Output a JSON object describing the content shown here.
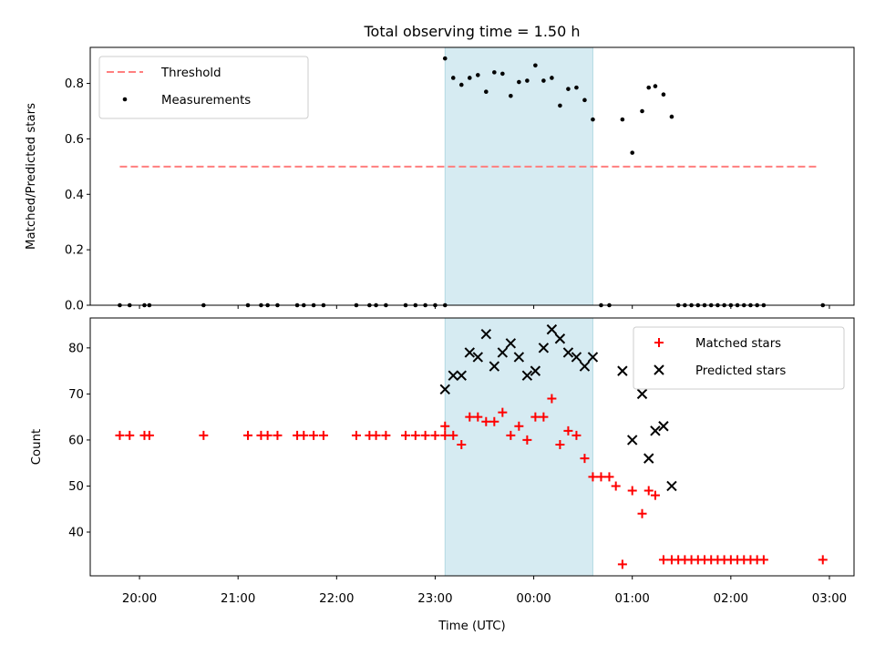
{
  "chart_data": [
    {
      "type": "scatter",
      "title": "Total observing time = 1.50 h",
      "xlabel": "",
      "ylabel": "Matched/Predicted stars",
      "ylim": [
        0,
        0.93
      ],
      "yticks": [
        "0.0",
        "0.2",
        "0.4",
        "0.6",
        "0.8"
      ],
      "shaded_span": {
        "start": "23:06",
        "end": "00:36",
        "color": "#add8e6"
      },
      "legend_position": "top-left",
      "series": [
        {
          "name": "Threshold",
          "kind": "dashed-line",
          "color": "#ff7f7f",
          "points": [
            [
              "19:48",
              0.5
            ],
            [
              "02:54",
              0.5
            ]
          ]
        },
        {
          "name": "Measurements",
          "kind": "dots",
          "color": "#000000",
          "points": [
            [
              "19:48",
              0.0
            ],
            [
              "19:54",
              0.0
            ],
            [
              "20:03",
              0.0
            ],
            [
              "20:06",
              0.0
            ],
            [
              "20:39",
              0.0
            ],
            [
              "21:06",
              0.0
            ],
            [
              "21:14",
              0.0
            ],
            [
              "21:18",
              0.0
            ],
            [
              "21:24",
              0.0
            ],
            [
              "21:36",
              0.0
            ],
            [
              "21:40",
              0.0
            ],
            [
              "21:46",
              0.0
            ],
            [
              "21:52",
              0.0
            ],
            [
              "22:12",
              0.0
            ],
            [
              "22:20",
              0.0
            ],
            [
              "22:24",
              0.0
            ],
            [
              "22:30",
              0.0
            ],
            [
              "22:42",
              0.0
            ],
            [
              "22:48",
              0.0
            ],
            [
              "22:54",
              0.0
            ],
            [
              "23:00",
              0.0
            ],
            [
              "23:06",
              0.0
            ],
            [
              "23:06",
              0.89
            ],
            [
              "23:11",
              0.82
            ],
            [
              "23:16",
              0.795
            ],
            [
              "23:21",
              0.82
            ],
            [
              "23:26",
              0.83
            ],
            [
              "23:31",
              0.77
            ],
            [
              "23:36",
              0.84
            ],
            [
              "23:41",
              0.835
            ],
            [
              "23:46",
              0.755
            ],
            [
              "23:51",
              0.805
            ],
            [
              "23:56",
              0.81
            ],
            [
              "00:01",
              0.865
            ],
            [
              "00:06",
              0.81
            ],
            [
              "00:11",
              0.82
            ],
            [
              "00:16",
              0.72
            ],
            [
              "00:21",
              0.78
            ],
            [
              "00:26",
              0.785
            ],
            [
              "00:31",
              0.74
            ],
            [
              "00:36",
              0.67
            ],
            [
              "00:41",
              0.0
            ],
            [
              "00:46",
              0.0
            ],
            [
              "00:54",
              0.67
            ],
            [
              "01:00",
              0.55
            ],
            [
              "01:06",
              0.7
            ],
            [
              "01:10",
              0.785
            ],
            [
              "01:14",
              0.79
            ],
            [
              "01:19",
              0.76
            ],
            [
              "01:24",
              0.68
            ],
            [
              "01:28",
              0.0
            ],
            [
              "01:32",
              0.0
            ],
            [
              "01:36",
              0.0
            ],
            [
              "01:40",
              0.0
            ],
            [
              "01:44",
              0.0
            ],
            [
              "01:48",
              0.0
            ],
            [
              "01:52",
              0.0
            ],
            [
              "01:56",
              0.0
            ],
            [
              "02:00",
              0.0
            ],
            [
              "02:04",
              0.0
            ],
            [
              "02:08",
              0.0
            ],
            [
              "02:12",
              0.0
            ],
            [
              "02:16",
              0.0
            ],
            [
              "02:20",
              0.0
            ],
            [
              "02:56",
              0.0
            ]
          ]
        }
      ]
    },
    {
      "type": "scatter",
      "title": "",
      "xlabel": "Time (UTC)",
      "ylabel": "Count",
      "ylim": [
        30.5,
        86.5
      ],
      "yticks": [
        "40",
        "50",
        "60",
        "70",
        "80"
      ],
      "xticks": [
        "20:00",
        "21:00",
        "22:00",
        "23:00",
        "00:00",
        "01:00",
        "02:00",
        "03:00"
      ],
      "xlim": [
        "19:30",
        "03:15"
      ],
      "shaded_span": {
        "start": "23:06",
        "end": "00:36",
        "color": "#add8e6"
      },
      "legend_position": "top-right",
      "series": [
        {
          "name": "Matched stars",
          "kind": "plus",
          "color": "#ff0000",
          "points": [
            [
              "19:48",
              61
            ],
            [
              "19:54",
              61
            ],
            [
              "20:03",
              61
            ],
            [
              "20:06",
              61
            ],
            [
              "20:39",
              61
            ],
            [
              "21:06",
              61
            ],
            [
              "21:14",
              61
            ],
            [
              "21:18",
              61
            ],
            [
              "21:24",
              61
            ],
            [
              "21:36",
              61
            ],
            [
              "21:40",
              61
            ],
            [
              "21:46",
              61
            ],
            [
              "21:52",
              61
            ],
            [
              "22:12",
              61
            ],
            [
              "22:20",
              61
            ],
            [
              "22:24",
              61
            ],
            [
              "22:30",
              61
            ],
            [
              "22:42",
              61
            ],
            [
              "22:48",
              61
            ],
            [
              "22:54",
              61
            ],
            [
              "23:00",
              61
            ],
            [
              "23:06",
              61
            ],
            [
              "23:06",
              63
            ],
            [
              "23:11",
              61
            ],
            [
              "23:16",
              59
            ],
            [
              "23:21",
              65
            ],
            [
              "23:26",
              65
            ],
            [
              "23:31",
              64
            ],
            [
              "23:36",
              64
            ],
            [
              "23:41",
              66
            ],
            [
              "23:46",
              61
            ],
            [
              "23:51",
              63
            ],
            [
              "23:56",
              60
            ],
            [
              "00:01",
              65
            ],
            [
              "00:06",
              65
            ],
            [
              "00:11",
              69
            ],
            [
              "00:16",
              59
            ],
            [
              "00:21",
              62
            ],
            [
              "00:26",
              61
            ],
            [
              "00:31",
              56
            ],
            [
              "00:36",
              52
            ],
            [
              "00:41",
              52
            ],
            [
              "00:46",
              52
            ],
            [
              "00:50",
              50
            ],
            [
              "00:54",
              33
            ],
            [
              "01:00",
              49
            ],
            [
              "01:06",
              44
            ],
            [
              "01:10",
              49
            ],
            [
              "01:14",
              48
            ],
            [
              "01:19",
              34
            ],
            [
              "01:24",
              34
            ],
            [
              "01:28",
              34
            ],
            [
              "01:32",
              34
            ],
            [
              "01:36",
              34
            ],
            [
              "01:40",
              34
            ],
            [
              "01:44",
              34
            ],
            [
              "01:48",
              34
            ],
            [
              "01:52",
              34
            ],
            [
              "01:56",
              34
            ],
            [
              "02:00",
              34
            ],
            [
              "02:04",
              34
            ],
            [
              "02:08",
              34
            ],
            [
              "02:12",
              34
            ],
            [
              "02:16",
              34
            ],
            [
              "02:20",
              34
            ],
            [
              "02:56",
              34
            ]
          ]
        },
        {
          "name": "Predicted stars",
          "kind": "cross",
          "color": "#000000",
          "points": [
            [
              "23:06",
              71
            ],
            [
              "23:11",
              74
            ],
            [
              "23:16",
              74
            ],
            [
              "23:21",
              79
            ],
            [
              "23:26",
              78
            ],
            [
              "23:31",
              83
            ],
            [
              "23:36",
              76
            ],
            [
              "23:41",
              79
            ],
            [
              "23:46",
              81
            ],
            [
              "23:51",
              78
            ],
            [
              "23:56",
              74
            ],
            [
              "00:01",
              75
            ],
            [
              "00:06",
              80
            ],
            [
              "00:11",
              84
            ],
            [
              "00:16",
              82
            ],
            [
              "00:21",
              79
            ],
            [
              "00:26",
              78
            ],
            [
              "00:31",
              76
            ],
            [
              "00:36",
              78
            ],
            [
              "00:54",
              75
            ],
            [
              "01:00",
              60
            ],
            [
              "01:06",
              70
            ],
            [
              "01:10",
              56
            ],
            [
              "01:14",
              62
            ],
            [
              "01:19",
              63
            ],
            [
              "01:24",
              50
            ]
          ]
        }
      ]
    }
  ]
}
